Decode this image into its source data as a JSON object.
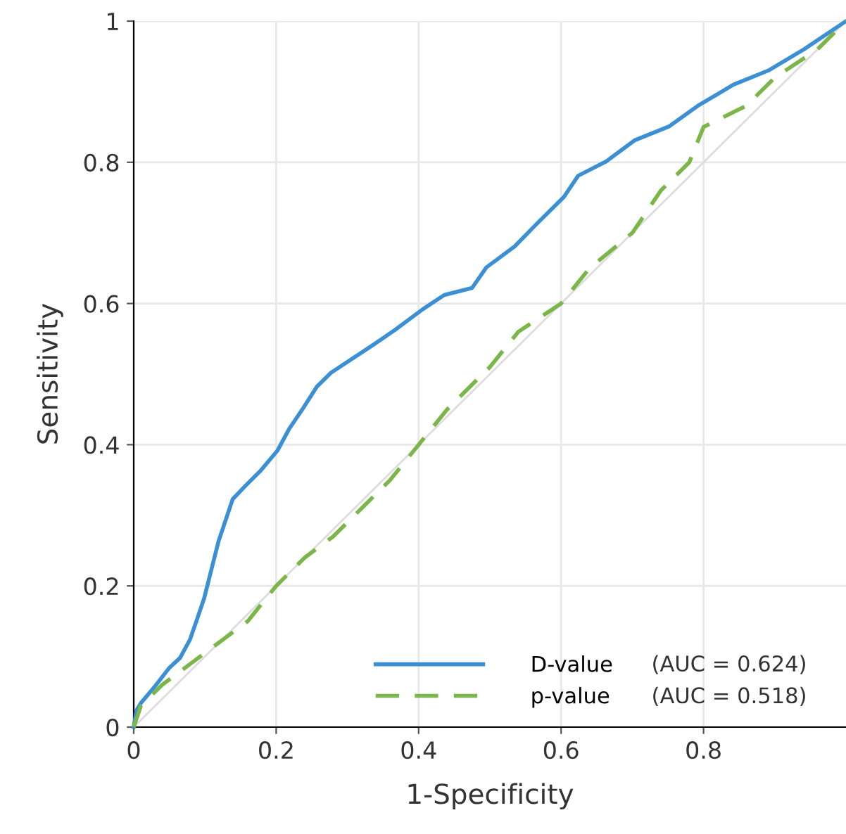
{
  "chart_data": {
    "type": "line",
    "xlabel": "1-Specificity",
    "ylabel": "Sensitivity",
    "x": [
      0,
      0.004,
      0.01,
      0.03,
      0.05,
      0.065,
      0.079,
      0.089,
      0.099,
      0.109,
      0.119,
      0.129,
      0.139,
      0.158,
      0.178,
      0.202,
      0.218,
      0.238,
      0.257,
      0.277,
      0.307,
      0.337,
      0.366,
      0.406,
      0.436,
      0.475,
      0.495,
      0.535,
      0.564,
      0.604,
      0.624,
      0.663,
      0.703,
      0.752,
      0.792,
      0.842,
      0.891,
      0.941,
      1.0
    ],
    "series": [
      {
        "name": "D-value",
        "color": "#3b8fd4",
        "line_style": "solid",
        "values": [
          0,
          0.024,
          0.034,
          0.058,
          0.084,
          0.098,
          0.124,
          0.153,
          0.183,
          0.223,
          0.263,
          0.293,
          0.323,
          0.343,
          0.363,
          0.392,
          0.422,
          0.452,
          0.482,
          0.502,
          0.522,
          0.542,
          0.562,
          0.592,
          0.612,
          0.622,
          0.651,
          0.681,
          0.711,
          0.751,
          0.781,
          0.801,
          0.831,
          0.851,
          0.88,
          0.91,
          0.93,
          0.96,
          1.0
        ]
      },
      {
        "name": "p-value",
        "color": "#7ab648",
        "line_style": "dashed",
        "x": [
          0,
          0.01,
          0.04,
          0.08,
          0.12,
          0.16,
          0.2,
          0.24,
          0.28,
          0.32,
          0.36,
          0.4,
          0.44,
          0.5,
          0.54,
          0.6,
          0.64,
          0.7,
          0.74,
          0.78,
          0.8,
          0.86,
          0.9,
          0.96,
          1.0
        ],
        "values": [
          0,
          0.03,
          0.06,
          0.09,
          0.12,
          0.15,
          0.2,
          0.24,
          0.27,
          0.31,
          0.35,
          0.4,
          0.45,
          0.51,
          0.56,
          0.6,
          0.65,
          0.7,
          0.76,
          0.8,
          0.85,
          0.88,
          0.92,
          0.96,
          1.0
        ]
      },
      {
        "color": "#dddddd",
        "line_style": "solid",
        "x": [
          0,
          1
        ],
        "values": [
          0,
          1
        ]
      }
    ],
    "annotations": [
      "(AUC = 0.624)",
      "(AUC = 0.518)"
    ],
    "xlim": [
      0,
      1
    ],
    "ylim": [
      0,
      1
    ],
    "xticks": [
      0,
      0.2,
      0.4,
      0.6,
      0.8
    ],
    "yticks": [
      0,
      0.2,
      0.4,
      0.6,
      0.8,
      1
    ],
    "grid": true,
    "legend": "bottom right"
  }
}
